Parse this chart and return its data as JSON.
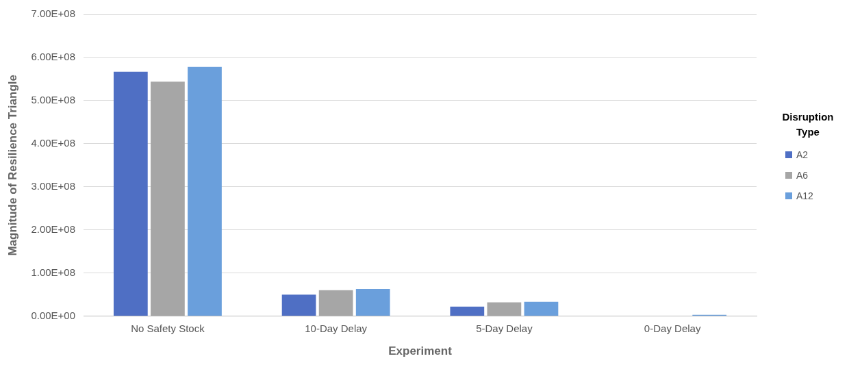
{
  "chart_data": {
    "type": "bar",
    "xlabel": "Experiment",
    "ylabel": "Magnitude of Resilience Triangle",
    "legend_title": "Disruption Type",
    "categories": [
      "No Safety Stock",
      "10-Day Delay",
      "5-Day Delay",
      "0-Day Delay"
    ],
    "series": [
      {
        "name": "A2",
        "color": "#4f6fc4",
        "values": [
          567000000,
          50000000,
          22000000,
          0
        ]
      },
      {
        "name": "A6",
        "color": "#a6a6a6",
        "values": [
          544000000,
          60000000,
          32000000,
          0
        ]
      },
      {
        "name": "A12",
        "color": "#6a9fdc",
        "values": [
          578000000,
          63000000,
          33000000,
          3000000
        ]
      }
    ],
    "ylim": [
      0,
      700000000
    ],
    "yticks": [
      {
        "value": 0,
        "label": "0.00E+00"
      },
      {
        "value": 100000000,
        "label": "1.00E+08"
      },
      {
        "value": 200000000,
        "label": "2.00E+08"
      },
      {
        "value": 300000000,
        "label": "3.00E+08"
      },
      {
        "value": 400000000,
        "label": "4.00E+08"
      },
      {
        "value": 500000000,
        "label": "5.00E+08"
      },
      {
        "value": 600000000,
        "label": "6.00E+08"
      },
      {
        "value": 700000000,
        "label": "7.00E+08"
      }
    ],
    "grid": "y",
    "legend": "right"
  }
}
